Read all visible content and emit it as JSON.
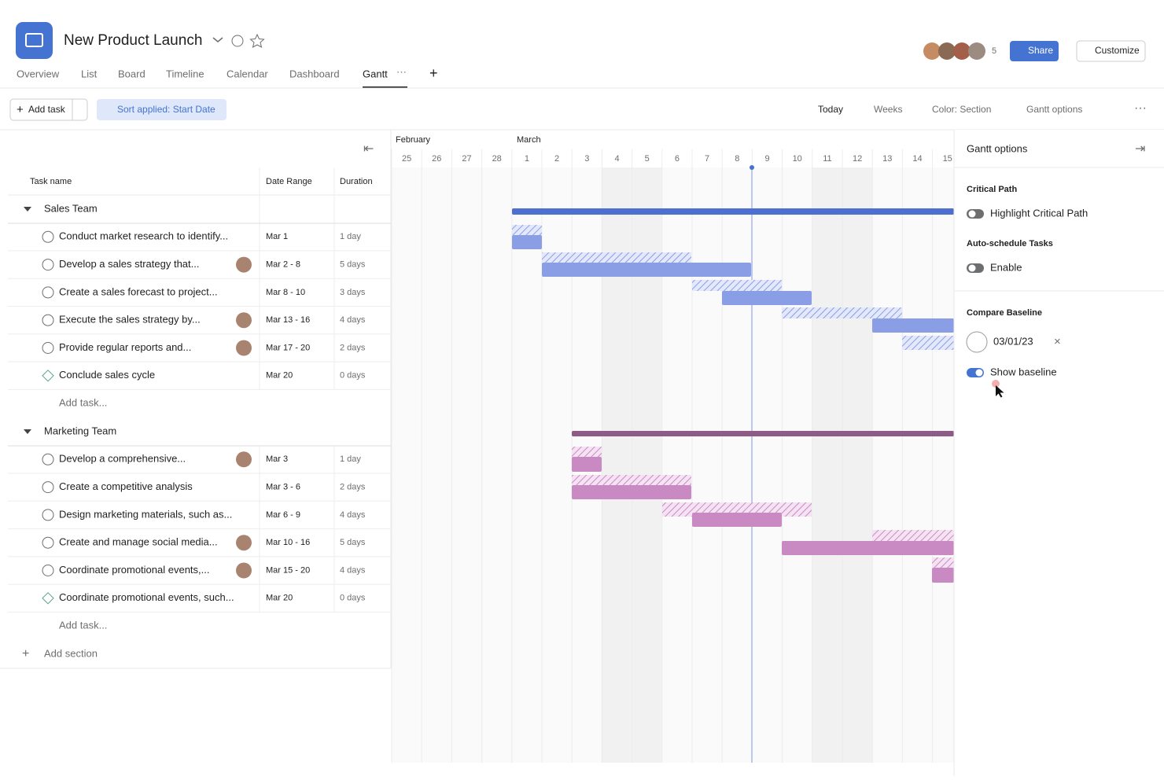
{
  "header": {
    "title": "New Product Launch",
    "tabs": [
      "Overview",
      "List",
      "Board",
      "Timeline",
      "Calendar",
      "Dashboard",
      "Gantt"
    ],
    "member_count": "5",
    "share": "Share",
    "customize": "Customize"
  },
  "toolbar": {
    "add_task": "Add task",
    "sort": "Sort applied: Start Date",
    "today": "Today",
    "weeks": "Weeks",
    "color": "Color: Section",
    "gantt_options": "Gantt options"
  },
  "timeline": {
    "months": [
      "February",
      "March"
    ],
    "days": [
      "25",
      "26",
      "27",
      "28",
      "1",
      "2",
      "3",
      "4",
      "5",
      "6",
      "7",
      "8",
      "9",
      "10",
      "11",
      "12",
      "13",
      "14",
      "15"
    ]
  },
  "table": {
    "columns": [
      "Task name",
      "Date Range",
      "Duration"
    ],
    "sections": [
      {
        "name": "Sales Team",
        "tasks": [
          {
            "name": "Conduct market research to identify...",
            "date_range": "Mar 1",
            "duration": "1 day"
          },
          {
            "name": "Develop a sales strategy that...",
            "date_range": "Mar 2 - 8",
            "duration": "5 days"
          },
          {
            "name": "Create a sales forecast to project...",
            "date_range": "Mar 8 - 10",
            "duration": "3 days"
          },
          {
            "name": "Execute the sales strategy by...",
            "date_range": "Mar 13 - 16",
            "duration": "4 days"
          },
          {
            "name": "Provide regular reports and...",
            "date_range": "Mar 17 - 20",
            "duration": "2 days"
          },
          {
            "name": "Conclude sales cycle",
            "date_range": "Mar 20",
            "duration": "0 days"
          }
        ],
        "add_task": "Add task..."
      },
      {
        "name": "Marketing Team",
        "tasks": [
          {
            "name": "Develop a comprehensive...",
            "date_range": "Mar 3",
            "duration": "1 day"
          },
          {
            "name": "Create a competitive analysis",
            "date_range": "Mar 3 - 6",
            "duration": "2 days"
          },
          {
            "name": "Design marketing materials, such as...",
            "date_range": "Mar 6 - 9",
            "duration": "4 days"
          },
          {
            "name": "Create and manage social media...",
            "date_range": "Mar 10 - 16",
            "duration": "5 days"
          },
          {
            "name": "Coordinate promotional events,...",
            "date_range": "Mar 15 - 20",
            "duration": "4 days"
          },
          {
            "name": "Coordinate promotional events, such...",
            "date_range": "Mar 20",
            "duration": "0 days"
          }
        ],
        "add_task": "Add task..."
      }
    ],
    "add_section": "Add section"
  },
  "panel": {
    "title": "Gantt options",
    "critical_path": "Critical Path",
    "highlight": "Highlight Critical Path",
    "auto_schedule": "Auto-schedule Tasks",
    "enable": "Enable",
    "compare_baseline": "Compare Baseline",
    "date": "03/01/23",
    "show_baseline": "Show baseline"
  }
}
